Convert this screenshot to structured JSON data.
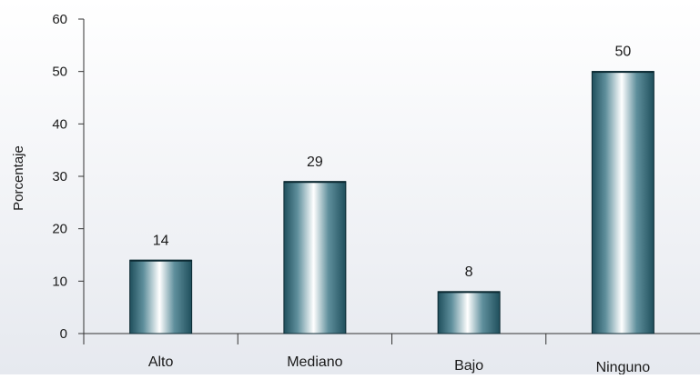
{
  "chart_data": {
    "type": "bar",
    "title": "",
    "xlabel": "",
    "ylabel": "Porcentaje",
    "categories": [
      "Alto",
      "Mediano",
      "Bajo",
      "Ninguno"
    ],
    "values": [
      14,
      29,
      8,
      50
    ],
    "data_labels": [
      "14",
      "29",
      "8",
      "50"
    ],
    "ylim": [
      0,
      60
    ],
    "yticks": [
      0,
      10,
      20,
      30,
      40,
      50,
      60
    ],
    "ytick_labels": [
      "0",
      "10",
      "20",
      "30",
      "40",
      "50",
      "60"
    ],
    "grid": false,
    "legend": "none",
    "colors": {
      "bar_dark": "#1f4f5c",
      "bar_mid": "#5f8f9c",
      "bar_light": "#ffffff",
      "bar_outline": "#0d2a33",
      "background_top": "#ffffff",
      "background_bottom": "#e6e9ef",
      "axis": "#333333"
    }
  }
}
